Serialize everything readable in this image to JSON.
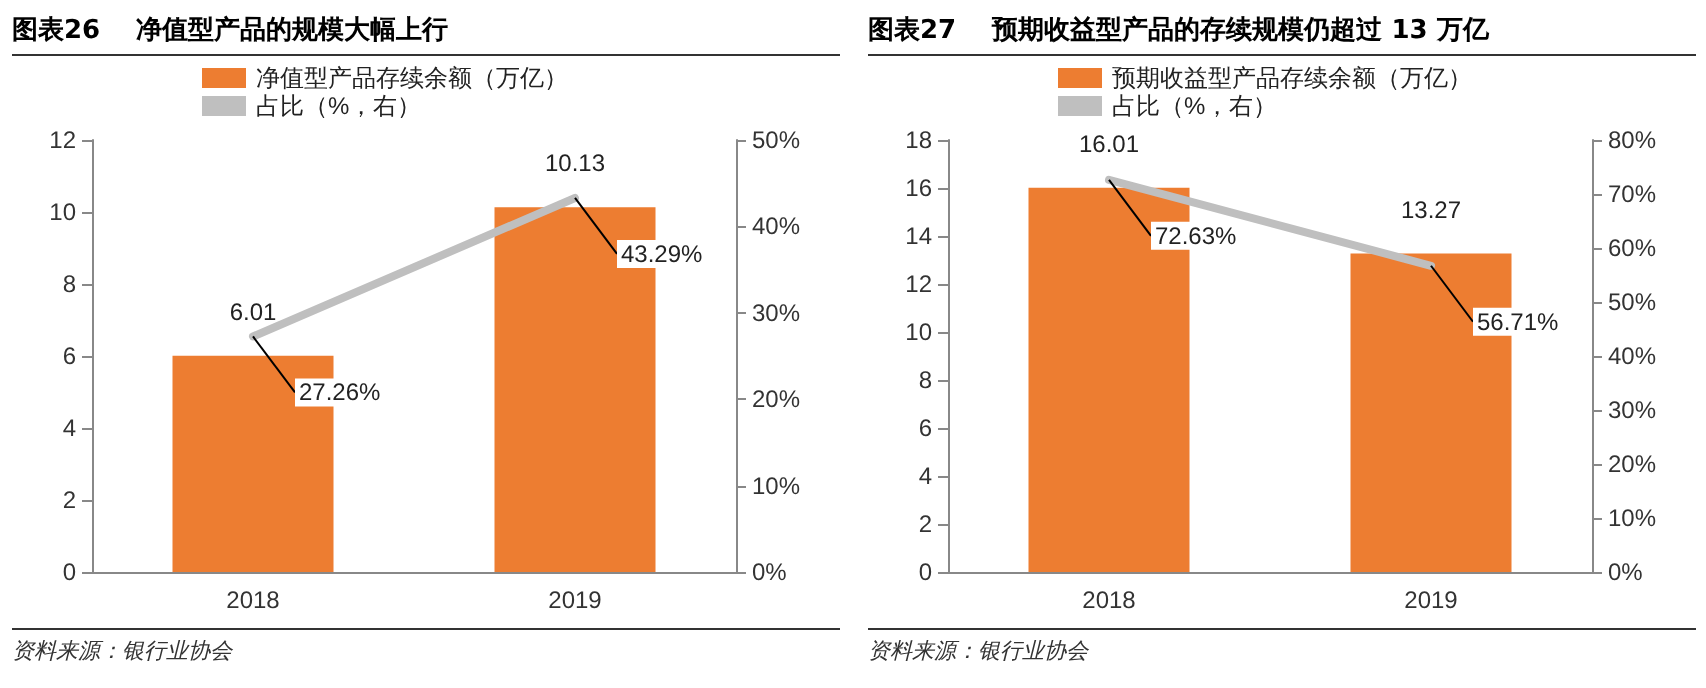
{
  "chart_data": [
    {
      "type": "bar",
      "title": "图表26    净值型产品的规模大幅上行",
      "categories": [
        "2018",
        "2019"
      ],
      "series": [
        {
          "name": "净值型产品存续余额（万亿）",
          "color": "#ed7d31",
          "values": [
            6.01,
            10.13
          ],
          "value_labels": [
            "6.01",
            "10.13"
          ]
        },
        {
          "name": "占比（%，右）",
          "type": "line",
          "axis": "y2",
          "color": "#bfbfbf",
          "values": [
            27.26,
            43.29
          ],
          "value_labels": [
            "27.26%",
            "43.29%"
          ]
        }
      ],
      "ylim": [
        0,
        12
      ],
      "yticks": [
        0,
        2,
        4,
        6,
        8,
        10,
        12
      ],
      "y2lim": [
        0,
        50
      ],
      "y2ticks": [
        {
          "value": 0,
          "label": "0%"
        },
        {
          "value": 10,
          "label": "10%"
        },
        {
          "value": 20,
          "label": "20%"
        },
        {
          "value": 30,
          "label": "30%"
        },
        {
          "value": 40,
          "label": "40%"
        },
        {
          "value": 50,
          "label": "50%"
        }
      ],
      "legend": "top",
      "grid": false,
      "marker": "none",
      "annotations": [
        "资料来源：银行业协会"
      ]
    },
    {
      "type": "bar",
      "title": "图表27    预期收益型产品的存续规模仍超过 13 万亿",
      "categories": [
        "2018",
        "2019"
      ],
      "series": [
        {
          "name": "预期收益型产品存续余额（万亿）",
          "color": "#ed7d31",
          "values": [
            16.01,
            13.27
          ],
          "value_labels": [
            "16.01",
            "13.27"
          ]
        },
        {
          "name": "占比（%，右）",
          "type": "line",
          "axis": "y2",
          "color": "#bfbfbf",
          "values": [
            72.63,
            56.71
          ],
          "value_labels": [
            "72.63%",
            "56.71%"
          ]
        }
      ],
      "ylim": [
        0,
        18
      ],
      "yticks": [
        0,
        2,
        4,
        6,
        8,
        10,
        12,
        14,
        16,
        18
      ],
      "y2lim": [
        0,
        80
      ],
      "y2ticks": [
        {
          "value": 0,
          "label": "0%"
        },
        {
          "value": 10,
          "label": "10%"
        },
        {
          "value": 20,
          "label": "20%"
        },
        {
          "value": 30,
          "label": "30%"
        },
        {
          "value": 40,
          "label": "40%"
        },
        {
          "value": 50,
          "label": "50%"
        },
        {
          "value": 60,
          "label": "60%"
        },
        {
          "value": 70,
          "label": "70%"
        },
        {
          "value": 80,
          "label": "80%"
        }
      ],
      "legend": "top",
      "grid": false,
      "marker": "none",
      "annotations": [
        "资料来源：银行业协会"
      ]
    }
  ]
}
